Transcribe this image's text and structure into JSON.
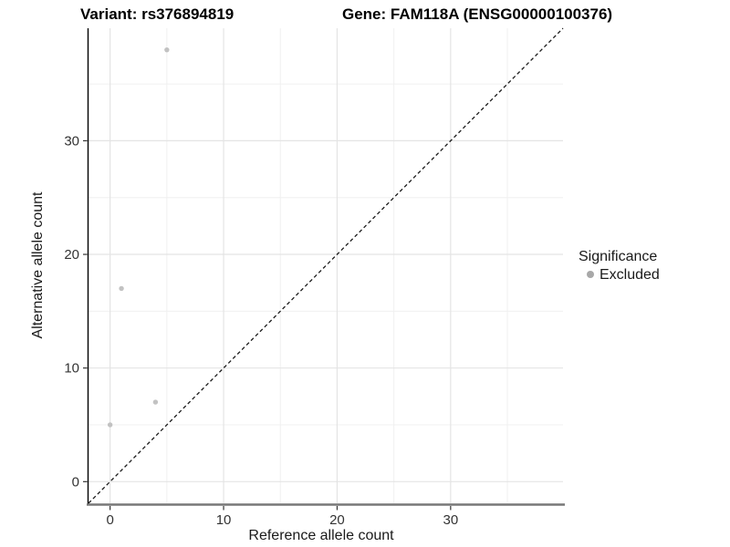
{
  "header": {
    "variant_title": "Variant: rs376894819",
    "gene_title": "Gene: FAM118A (ENSG00000100376)"
  },
  "chart_data": {
    "type": "scatter",
    "xlabel": "Reference allele count",
    "ylabel": "Alternative allele count",
    "xlim": [
      -1.9,
      39.9
    ],
    "ylim": [
      -1.9,
      39.9
    ],
    "major_ticks": [
      0,
      10,
      20,
      30
    ],
    "minor_ticks": [
      5,
      15,
      25,
      35
    ],
    "grid": true,
    "series": [
      {
        "name": "Excluded",
        "color": "#c2c2c2",
        "points": [
          {
            "x": 0,
            "y": 5
          },
          {
            "x": 1,
            "y": 17
          },
          {
            "x": 4,
            "y": 7
          },
          {
            "x": 5,
            "y": 38
          }
        ]
      }
    ],
    "identity_line": {
      "equation": "y = x",
      "style": "dashed",
      "color": "#1a1a1a"
    },
    "legend": {
      "title": "Significance",
      "position": "right",
      "items": [
        {
          "label": "Excluded",
          "color": "#a8a8a8"
        }
      ]
    },
    "colors": {
      "grid_major": "#e4e4e4",
      "grid_minor": "#f0f0f0",
      "axis_line_left": "#000000",
      "axis_line_bottom": "#787878",
      "tick_mark": "#333333"
    }
  }
}
